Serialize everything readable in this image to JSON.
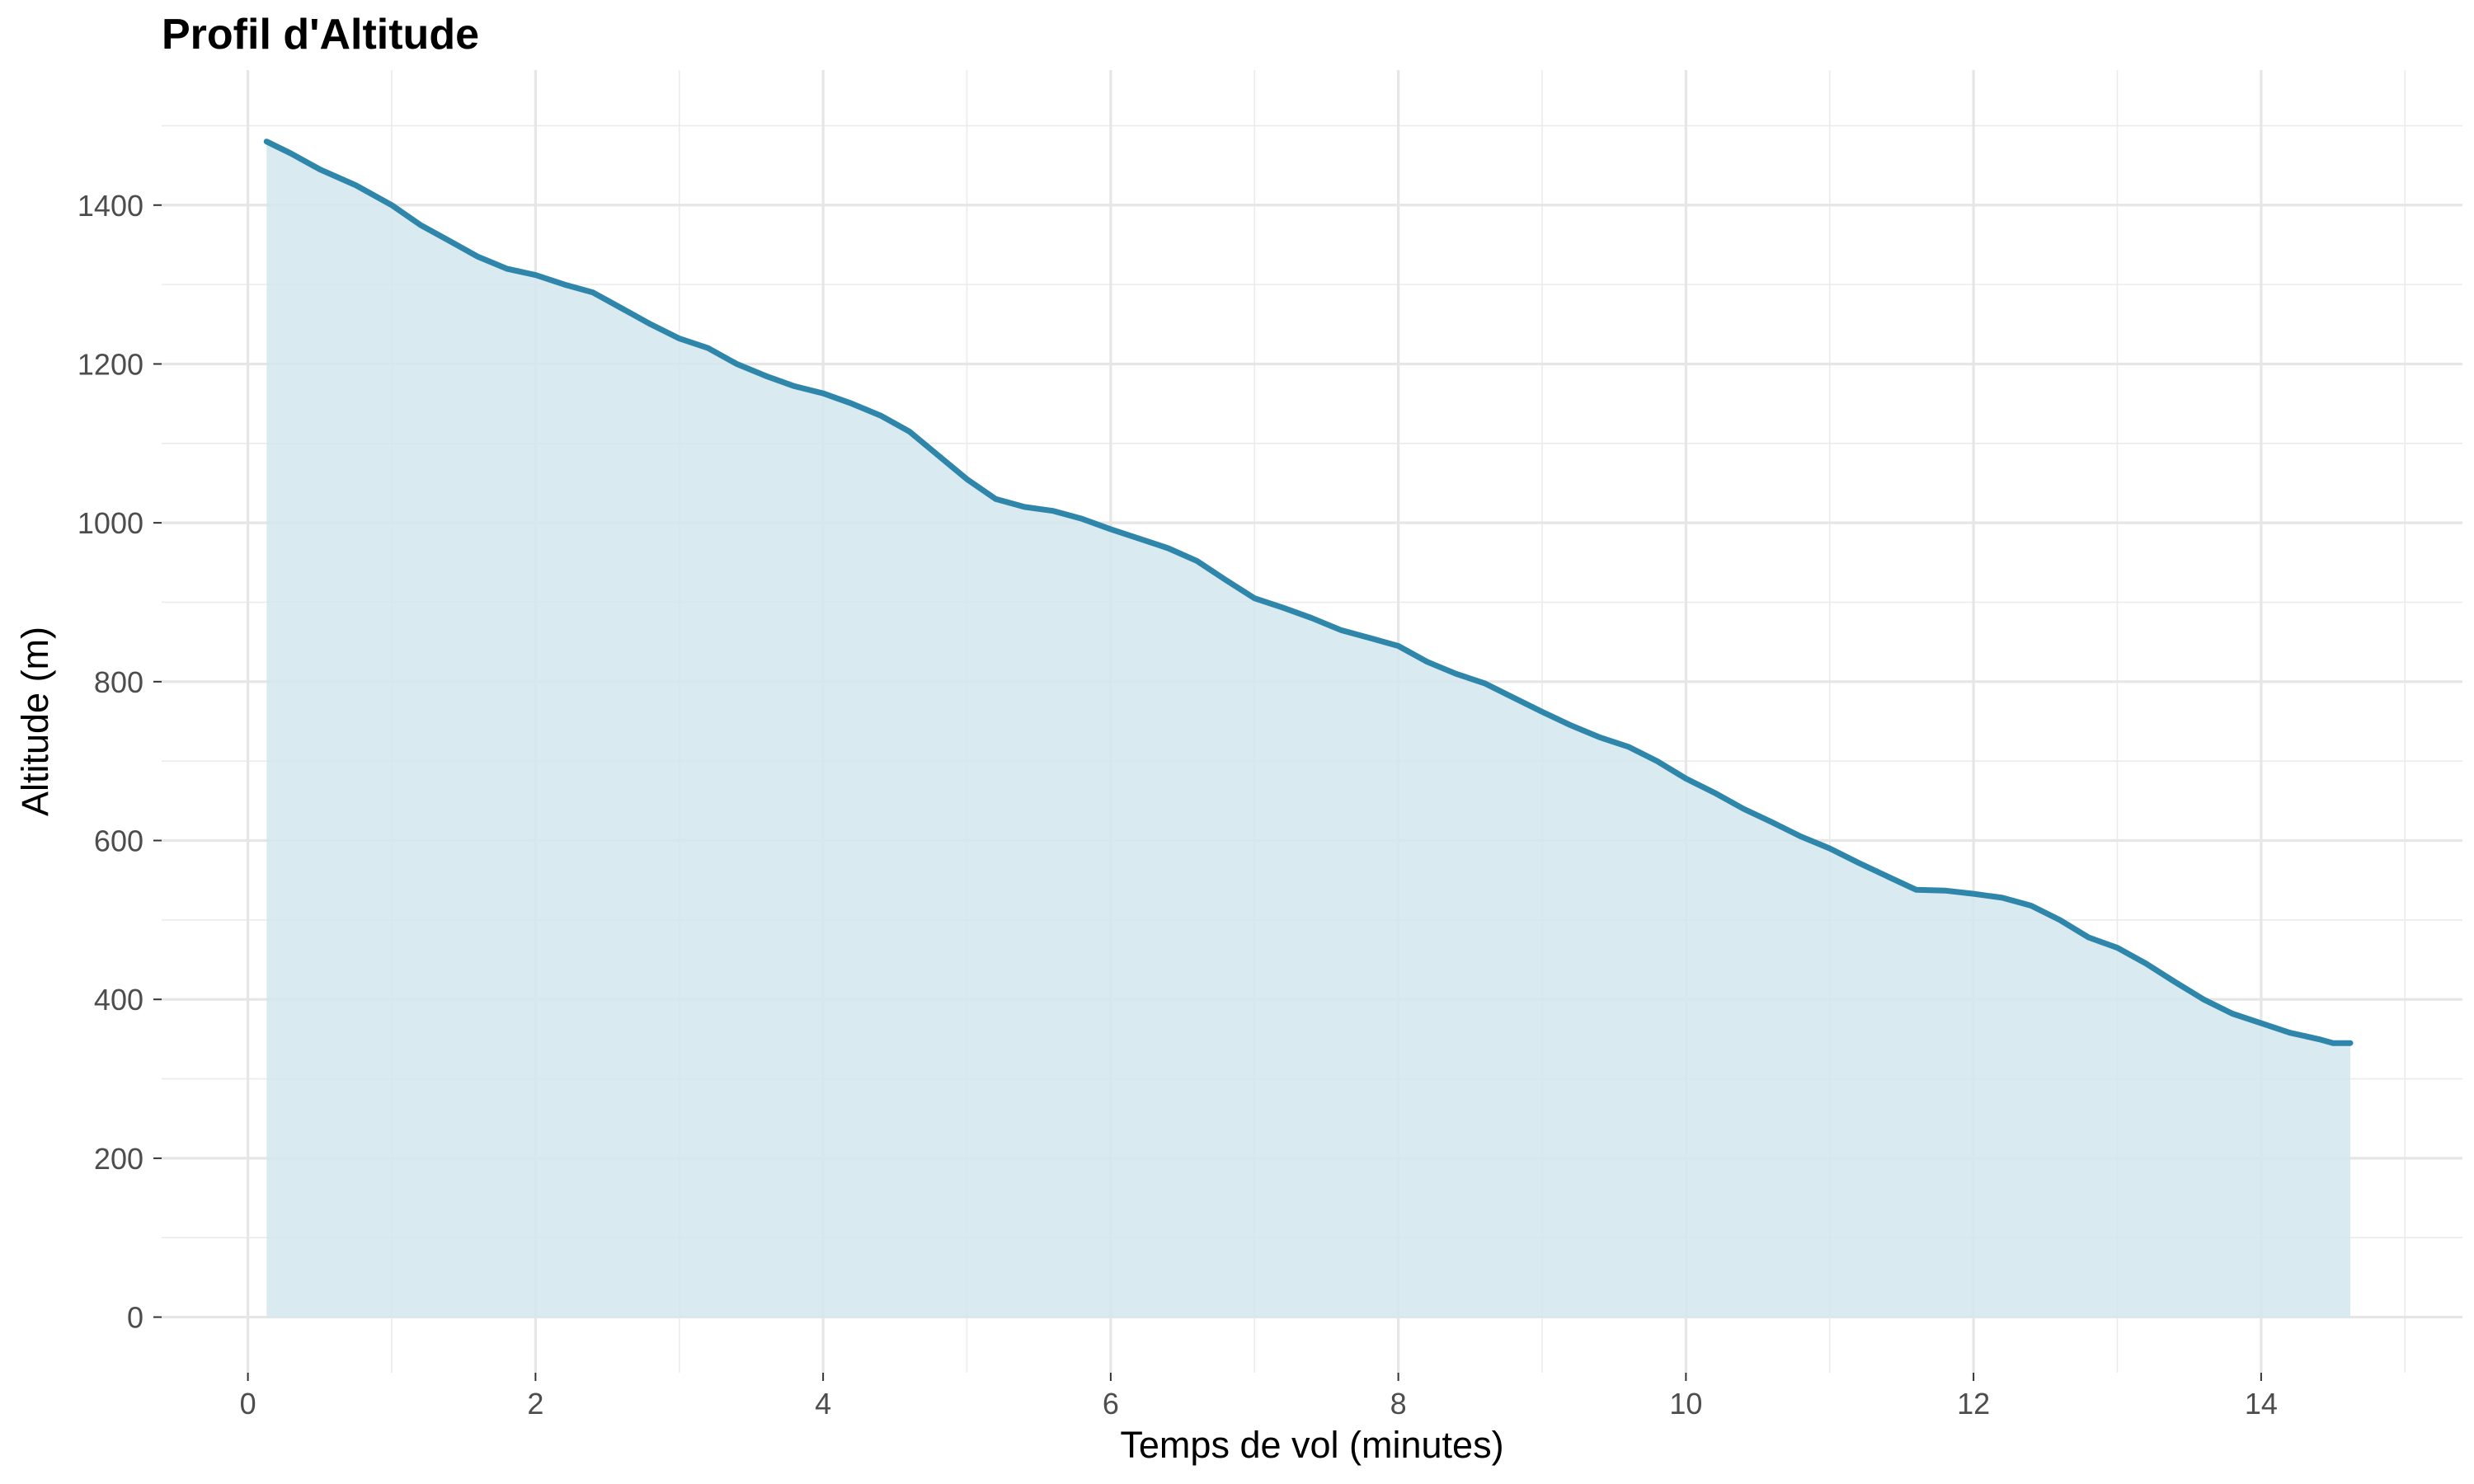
{
  "chart_data": {
    "type": "area",
    "title": "Profil d'Altitude",
    "xlabel": "Temps de vol (minutes)",
    "ylabel": "Altitude (m)",
    "xlim": [
      -0.6,
      15.4
    ],
    "ylim": [
      -70,
      1570
    ],
    "x_ticks": [
      0,
      2,
      4,
      6,
      8,
      10,
      12,
      14
    ],
    "y_ticks": [
      0,
      200,
      400,
      600,
      800,
      1000,
      1200,
      1400
    ],
    "grid": true,
    "line_color": "#2E86AB",
    "fill_color": "#D4E6EE",
    "series": [
      {
        "x": [
          0.13,
          0.3,
          0.5,
          0.75,
          1.0,
          1.2,
          1.4,
          1.6,
          1.8,
          2.0,
          2.2,
          2.4,
          2.6,
          2.8,
          3.0,
          3.2,
          3.4,
          3.6,
          3.8,
          4.0,
          4.2,
          4.4,
          4.6,
          4.8,
          5.0,
          5.2,
          5.4,
          5.6,
          5.8,
          6.0,
          6.2,
          6.4,
          6.6,
          6.8,
          7.0,
          7.2,
          7.4,
          7.6,
          7.8,
          8.0,
          8.2,
          8.4,
          8.6,
          8.8,
          9.0,
          9.2,
          9.4,
          9.6,
          9.8,
          10.0,
          10.2,
          10.4,
          10.6,
          10.8,
          11.0,
          11.2,
          11.4,
          11.6,
          11.8,
          12.0,
          12.2,
          12.4,
          12.6,
          12.8,
          13.0,
          13.2,
          13.4,
          13.6,
          13.8,
          14.0,
          14.2,
          14.4,
          14.5,
          14.62
        ],
        "y": [
          1480,
          1465,
          1445,
          1425,
          1400,
          1375,
          1355,
          1335,
          1320,
          1312,
          1300,
          1290,
          1270,
          1250,
          1232,
          1220,
          1200,
          1185,
          1172,
          1163,
          1150,
          1135,
          1115,
          1085,
          1055,
          1030,
          1020,
          1015,
          1005,
          992,
          980,
          968,
          952,
          928,
          905,
          893,
          880,
          865,
          855,
          845,
          825,
          810,
          798,
          780,
          762,
          745,
          730,
          718,
          700,
          678,
          660,
          640,
          623,
          605,
          590,
          572,
          555,
          538,
          537,
          533,
          528,
          518,
          500,
          478,
          465,
          445,
          422,
          400,
          382,
          370,
          358,
          350,
          345,
          345
        ]
      }
    ]
  }
}
